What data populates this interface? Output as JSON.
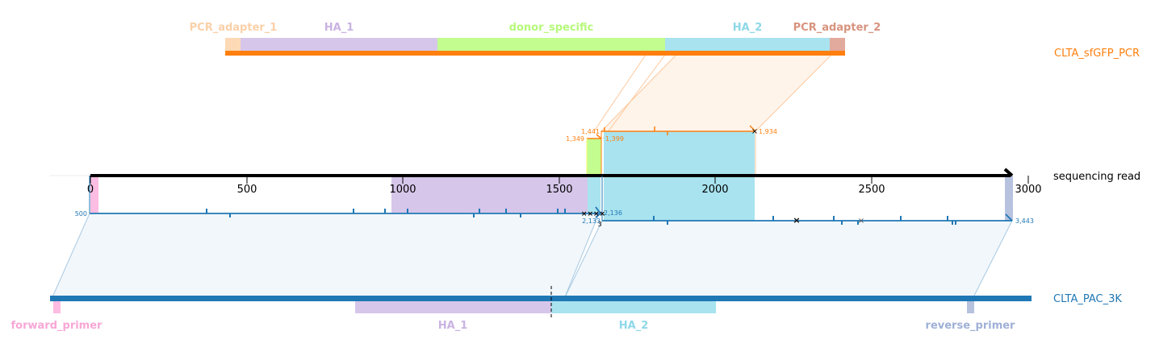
{
  "colors": {
    "pcr_adapter_1": "#fdd9b5",
    "ha_1": "#d6c6ea",
    "donor_specific": "#c3fd8f",
    "ha_2": "#a8e3ef",
    "pcr_adapter_2": "#e2aa9c",
    "forward_primer": "#fdbde2",
    "reverse_primer": "#b6c2de",
    "orange": "#ff7f0e",
    "blue": "#1f77b4",
    "read": "#000000",
    "label_pcr_adapter_1": "#fad0a8",
    "label_ha_1": "#c9b3e2",
    "label_donor_specific": "#b6f97a",
    "label_ha_2": "#8ed8e8",
    "label_pcr_adapter_2": "#d7937e",
    "label_forward_primer": "#f8a6d6",
    "label_reverse_primer": "#9fb0d6"
  },
  "top_ref": {
    "name": "CLTA_sfGFP_PCR",
    "features": [
      "PCR_adapter_1",
      "HA_1",
      "donor_specific",
      "HA_2",
      "PCR_adapter_2"
    ]
  },
  "read": {
    "name": "sequencing read",
    "ticks": [
      "0",
      "500",
      "1000",
      "1500",
      "2000",
      "2500",
      "3000"
    ]
  },
  "bottom_ref": {
    "name": "CLTA_PAC_3K",
    "features": [
      "forward_primer",
      "HA_1",
      "HA_2",
      "reverse_primer"
    ]
  },
  "annotations": {
    "orange_1441": "1,441",
    "orange_1349": "1,349",
    "orange_1399": "1,399",
    "orange_1934": "1,934",
    "blue_500": "500",
    "blue_2136": "2,136",
    "blue_2133": "2,133",
    "blue_3": "3",
    "blue_3443": "3,443"
  }
}
